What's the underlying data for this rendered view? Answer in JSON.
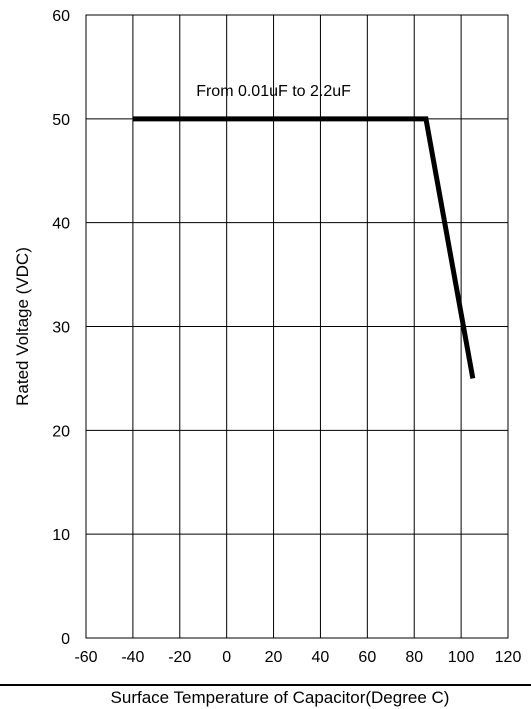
{
  "chart_data": {
    "type": "line",
    "title": "",
    "xlabel": "Surface Temperature of Capacitor(Degree C)",
    "ylabel": "Rated Voltage (VDC)",
    "xlim": [
      -60,
      120
    ],
    "ylim": [
      0,
      60
    ],
    "x_ticks": [
      -60,
      -40,
      -20,
      0,
      20,
      40,
      60,
      80,
      100,
      120
    ],
    "y_ticks": [
      0,
      10,
      20,
      30,
      40,
      50,
      60
    ],
    "grid": true,
    "series": [
      {
        "name": "",
        "x": [
          -40,
          85,
          105
        ],
        "y": [
          50,
          50,
          25
        ],
        "color": "#000000"
      }
    ],
    "annotations": [
      {
        "text": "From 0.01uF to 2.2uF",
        "x": 20,
        "y": 52.8
      }
    ]
  }
}
